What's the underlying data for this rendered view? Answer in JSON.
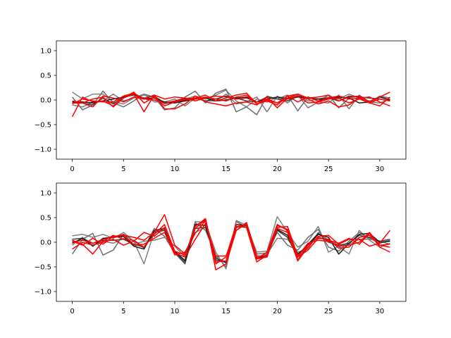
{
  "chart_data": [
    {
      "type": "line",
      "title": "",
      "xlabel": "",
      "ylabel": "",
      "xlim": [
        -1.55,
        32.55
      ],
      "ylim": [
        -1.2,
        1.2
      ],
      "xticks": [
        0,
        5,
        10,
        15,
        20,
        25,
        30
      ],
      "yticks": [
        -1.0,
        -0.5,
        0.0,
        0.5,
        1.0
      ],
      "xtick_labels": [
        "0",
        "5",
        "10",
        "15",
        "20",
        "25",
        "30"
      ],
      "ytick_labels": [
        "−1.0",
        "−0.5",
        "0.0",
        "0.5",
        "1.0"
      ],
      "grid": false,
      "legend": "none",
      "x": [
        0,
        1,
        2,
        3,
        4,
        5,
        6,
        7,
        8,
        9,
        10,
        11,
        12,
        13,
        14,
        15,
        16,
        17,
        18,
        19,
        20,
        21,
        22,
        23,
        24,
        25,
        26,
        27,
        28,
        29,
        30,
        31
      ],
      "series": [
        {
          "color": "#808080",
          "values": [
            0.16,
            0.02,
            0.12,
            0.12,
            -0.04,
            -0.08,
            0.04,
            0.1,
            0.04,
            -0.08,
            -0.04,
            0.02,
            0.08,
            0.02,
            0.1,
            0.2,
            -0.02,
            -0.14,
            0.02,
            -0.04,
            0.06,
            0.04,
            0.1,
            -0.02,
            0.02,
            0.06,
            0.02,
            0.12,
            0.04,
            -0.02,
            0.06,
            0.04
          ]
        },
        {
          "color": "#6e6e6e",
          "values": [
            0.06,
            -0.2,
            -0.1,
            0.18,
            -0.06,
            -0.14,
            -0.02,
            0.12,
            0.06,
            -0.2,
            -0.16,
            0.06,
            0.18,
            -0.06,
            0.14,
            0.22,
            -0.24,
            -0.14,
            -0.3,
            0.08,
            0.02,
            0.1,
            -0.22,
            0.06,
            -0.02,
            0.1,
            -0.16,
            0.04,
            0.08,
            -0.04,
            0.08,
            0.04
          ]
        },
        {
          "color": "#7a7a7a",
          "values": [
            -0.1,
            -0.14,
            -0.04,
            -0.02,
            0.12,
            -0.02,
            0.04,
            0.12,
            -0.04,
            -0.04,
            0.02,
            -0.12,
            0.04,
            -0.02,
            -0.02,
            0.12,
            -0.08,
            -0.04,
            0.06,
            -0.24,
            0.08,
            -0.06,
            0.1,
            -0.16,
            -0.04,
            -0.06,
            0.1,
            -0.18,
            0.1,
            -0.04,
            -0.06,
            0.02
          ]
        },
        {
          "color": "#404040",
          "values": [
            -0.06,
            -0.06,
            -0.1,
            0.04,
            -0.08,
            0.06,
            0.1,
            0.04,
            0.08,
            -0.06,
            -0.04,
            0.02,
            0.04,
            -0.02,
            0.02,
            0.08,
            0.04,
            -0.02,
            -0.04,
            0.06,
            0.02,
            -0.02,
            0.08,
            0.04,
            0.02,
            0.04,
            -0.02,
            0.08,
            0.06,
            0.04,
            0.02,
            -0.02
          ]
        },
        {
          "color": "#1a1a1a",
          "values": [
            -0.04,
            -0.04,
            -0.06,
            -0.02,
            0.02,
            0.06,
            0.12,
            0.02,
            0.04,
            -0.04,
            -0.06,
            -0.02,
            0.02,
            0.04,
            -0.02,
            0.0,
            0.04,
            0.06,
            -0.04,
            0.02,
            0.06,
            0.02,
            0.06,
            0.04,
            0.02,
            0.02,
            0.06,
            0.04,
            -0.06,
            -0.04,
            0.06,
            0.0
          ]
        },
        {
          "color": "#ff0000",
          "values": [
            -0.34,
            0.06,
            -0.04,
            -0.02,
            -0.12,
            0.04,
            0.12,
            -0.24,
            0.1,
            -0.18,
            -0.18,
            -0.08,
            0.08,
            -0.04,
            -0.08,
            -0.12,
            -0.06,
            -0.04,
            -0.1,
            0.06,
            -0.16,
            0.04,
            0.12,
            0.04,
            0.06,
            0.1,
            -0.02,
            0.06,
            0.08,
            -0.04,
            0.06,
            0.16
          ]
        },
        {
          "color": "#ff0000",
          "values": [
            -0.06,
            -0.06,
            0.02,
            0.06,
            -0.14,
            0.04,
            0.16,
            -0.06,
            0.06,
            -0.12,
            -0.04,
            0.0,
            0.04,
            0.1,
            -0.02,
            0.04,
            0.1,
            0.14,
            -0.08,
            0.02,
            -0.06,
            0.08,
            0.12,
            0.02,
            -0.08,
            -0.02,
            -0.14,
            -0.1,
            0.04,
            0.06,
            -0.04,
            -0.12
          ]
        },
        {
          "color": "#ff0000",
          "values": [
            -0.02,
            -0.06,
            -0.14,
            0.08,
            0.04,
            -0.04,
            0.06,
            0.02,
            0.1,
            0.02,
            0.06,
            0.04,
            0.02,
            0.06,
            0.02,
            -0.02,
            0.06,
            0.1,
            -0.08,
            -0.02,
            -0.1,
            0.08,
            -0.04,
            0.06,
            -0.02,
            0.04,
            0.08,
            0.02,
            0.04,
            -0.06,
            -0.12,
            0.06
          ]
        },
        {
          "color": "#ff0000",
          "values": [
            -0.08,
            0.02,
            -0.02,
            -0.04,
            -0.04,
            0.08,
            0.14,
            0.02,
            0.0,
            -0.06,
            -0.02,
            0.04,
            -0.02,
            0.04,
            0.08,
            0.06,
            0.02,
            0.04,
            -0.04,
            0.0,
            -0.06,
            0.02,
            0.08,
            -0.06,
            -0.04,
            0.02,
            0.04,
            -0.06,
            0.02,
            -0.06,
            0.02,
            -0.02
          ]
        }
      ]
    },
    {
      "type": "line",
      "title": "",
      "xlabel": "",
      "ylabel": "",
      "xlim": [
        -1.55,
        32.55
      ],
      "ylim": [
        -1.2,
        1.2
      ],
      "xticks": [
        0,
        5,
        10,
        15,
        20,
        25,
        30
      ],
      "yticks": [
        -1.0,
        -0.5,
        0.0,
        0.5,
        1.0
      ],
      "xtick_labels": [
        "0",
        "5",
        "10",
        "15",
        "20",
        "25",
        "30"
      ],
      "ytick_labels": [
        "−1.0",
        "−0.5",
        "0.0",
        "0.5",
        "1.0"
      ],
      "grid": false,
      "legend": "none",
      "x": [
        0,
        1,
        2,
        3,
        4,
        5,
        6,
        7,
        8,
        9,
        10,
        11,
        12,
        13,
        14,
        15,
        16,
        17,
        18,
        19,
        20,
        21,
        22,
        23,
        24,
        25,
        26,
        27,
        28,
        29,
        30,
        31
      ],
      "series": [
        {
          "color": "#808080",
          "values": [
            0.13,
            0.16,
            0.1,
            0.16,
            0.08,
            0.2,
            0.02,
            -0.44,
            0.22,
            0.26,
            -0.2,
            -0.36,
            0.42,
            0.4,
            -0.2,
            -0.54,
            0.44,
            0.34,
            -0.2,
            -0.18,
            0.52,
            0.2,
            -0.1,
            0.02,
            0.32,
            -0.2,
            -0.08,
            -0.24,
            0.24,
            0.04,
            -0.1,
            -0.02
          ]
        },
        {
          "color": "#6e6e6e",
          "values": [
            -0.24,
            0.06,
            0.18,
            -0.26,
            -0.16,
            0.16,
            0.02,
            -0.12,
            0.28,
            0.12,
            -0.22,
            -0.44,
            0.4,
            0.24,
            -0.26,
            -0.5,
            0.42,
            0.3,
            -0.24,
            -0.22,
            0.2,
            -0.06,
            -0.16,
            0.1,
            0.26,
            -0.1,
            -0.18,
            0.02,
            0.2,
            0.08,
            -0.02,
            0.04
          ]
        },
        {
          "color": "#7a7a7a",
          "values": [
            -0.06,
            0.1,
            -0.06,
            0.02,
            -0.02,
            0.08,
            -0.04,
            0.02,
            0.04,
            0.1,
            -0.08,
            -0.3,
            0.2,
            0.3,
            -0.3,
            -0.4,
            0.3,
            0.34,
            -0.3,
            -0.24,
            0.08,
            0.06,
            -0.2,
            -0.14,
            0.2,
            0.04,
            -0.06,
            -0.04,
            0.06,
            0.06,
            0.02,
            -0.04
          ]
        },
        {
          "color": "#404040",
          "values": [
            0.06,
            0.08,
            -0.02,
            0.04,
            0.04,
            0.06,
            -0.04,
            -0.1,
            0.2,
            0.24,
            -0.2,
            -0.42,
            0.28,
            0.3,
            -0.32,
            -0.42,
            0.32,
            0.3,
            -0.32,
            -0.28,
            0.24,
            0.1,
            -0.3,
            -0.04,
            0.18,
            0.0,
            -0.06,
            -0.02,
            0.14,
            0.1,
            0.02,
            0.06
          ]
        },
        {
          "color": "#1a1a1a",
          "values": [
            -0.02,
            0.08,
            -0.08,
            0.08,
            0.1,
            0.12,
            -0.08,
            -0.14,
            0.24,
            0.28,
            -0.18,
            -0.38,
            0.36,
            0.34,
            -0.36,
            -0.4,
            0.36,
            0.34,
            -0.34,
            -0.26,
            0.26,
            0.14,
            -0.24,
            -0.06,
            0.16,
            0.1,
            -0.24,
            -0.02,
            0.16,
            0.18,
            0.0,
            0.02
          ]
        },
        {
          "color": "#ff0000",
          "values": [
            0.02,
            -0.06,
            0.08,
            -0.04,
            0.12,
            0.14,
            0.1,
            0.04,
            0.2,
            0.56,
            -0.06,
            -0.24,
            0.28,
            0.46,
            -0.56,
            -0.44,
            0.24,
            0.38,
            -0.34,
            -0.3,
            0.28,
            0.2,
            -0.38,
            -0.1,
            0.12,
            0.14,
            -0.04,
            0.06,
            0.06,
            -0.08,
            -0.02,
            0.24
          ]
        },
        {
          "color": "#ff0000",
          "values": [
            0.04,
            -0.04,
            -0.24,
            0.02,
            0.14,
            0.06,
            0.04,
            -0.1,
            0.16,
            0.36,
            -0.18,
            -0.26,
            0.32,
            0.48,
            -0.44,
            -0.3,
            0.36,
            0.3,
            -0.4,
            -0.26,
            0.34,
            0.26,
            -0.36,
            -0.06,
            0.1,
            0.04,
            -0.02,
            0.08,
            -0.04,
            0.18,
            -0.1,
            -0.2
          ]
        },
        {
          "color": "#ff0000",
          "values": [
            -0.14,
            0.0,
            -0.06,
            0.0,
            0.06,
            -0.06,
            0.02,
            0.2,
            0.12,
            0.3,
            -0.22,
            -0.3,
            0.06,
            0.38,
            -0.28,
            -0.28,
            0.24,
            0.4,
            -0.28,
            -0.28,
            0.3,
            0.32,
            -0.28,
            -0.02,
            0.04,
            0.02,
            -0.08,
            -0.06,
            0.0,
            0.2,
            -0.06,
            -0.1
          ]
        },
        {
          "color": "#ff0000",
          "values": [
            0.0,
            0.04,
            -0.02,
            0.06,
            0.1,
            0.16,
            -0.06,
            -0.04,
            0.08,
            0.2,
            -0.26,
            -0.2,
            0.18,
            0.44,
            -0.4,
            -0.38,
            0.3,
            0.36,
            -0.34,
            -0.2,
            0.36,
            0.24,
            -0.3,
            -0.16,
            0.08,
            0.06,
            -0.12,
            -0.1,
            0.1,
            0.14,
            -0.06,
            -0.04
          ]
        }
      ]
    }
  ]
}
